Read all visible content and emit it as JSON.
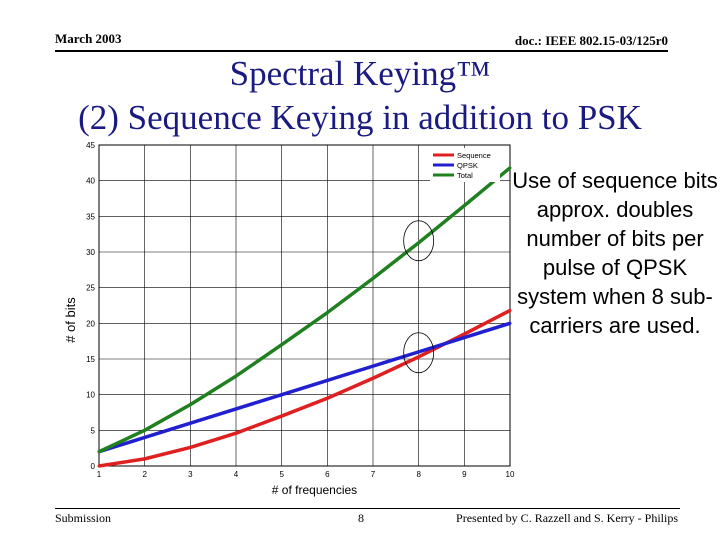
{
  "header": {
    "date": "March 2003",
    "doc": "doc.: IEEE 802.15-03/125r0"
  },
  "title": {
    "line1": "Spectral Keying™",
    "line2": "(2) Sequence Keying in addition to PSK"
  },
  "side_text": "Use of sequence bits approx. doubles number of bits per pulse of QPSK system when 8 sub-carriers are used.",
  "footer": {
    "left": "Submission",
    "page": "8",
    "right": "Presented by C. Razzell and S. Kerry - Philips"
  },
  "chart_data": {
    "type": "line",
    "xlabel": "# of frequencies",
    "ylabel": "# of bits",
    "xlim": [
      0,
      10
    ],
    "ylim": [
      0,
      45
    ],
    "x_ticks": [
      1,
      2,
      3,
      4,
      5,
      6,
      7,
      8,
      9,
      10
    ],
    "y_ticks": [
      0,
      5,
      10,
      15,
      20,
      25,
      30,
      35,
      40,
      45
    ],
    "grid": true,
    "legend_position": "top-right",
    "x": [
      1,
      2,
      3,
      4,
      5,
      6,
      7,
      8,
      9,
      10
    ],
    "series": [
      {
        "name": "Sequence",
        "color": "#e02020",
        "values": [
          0,
          1,
          2.6,
          4.6,
          7,
          9.5,
          12.3,
          15.3,
          18.5,
          21.8
        ]
      },
      {
        "name": "QPSK",
        "color": "#2020d0",
        "values": [
          2,
          4,
          6,
          8,
          10,
          12,
          14,
          16,
          18,
          20
        ]
      },
      {
        "name": "Total",
        "color": "#208020",
        "values": [
          2,
          5,
          8.6,
          12.6,
          17,
          21.5,
          26.3,
          31.3,
          36.5,
          41.8
        ]
      }
    ],
    "annotations": [
      {
        "shape": "circle",
        "at_x": 8,
        "at_y": 31.3
      },
      {
        "shape": "circle",
        "at_x": 8,
        "at_y": 15.6
      }
    ]
  }
}
